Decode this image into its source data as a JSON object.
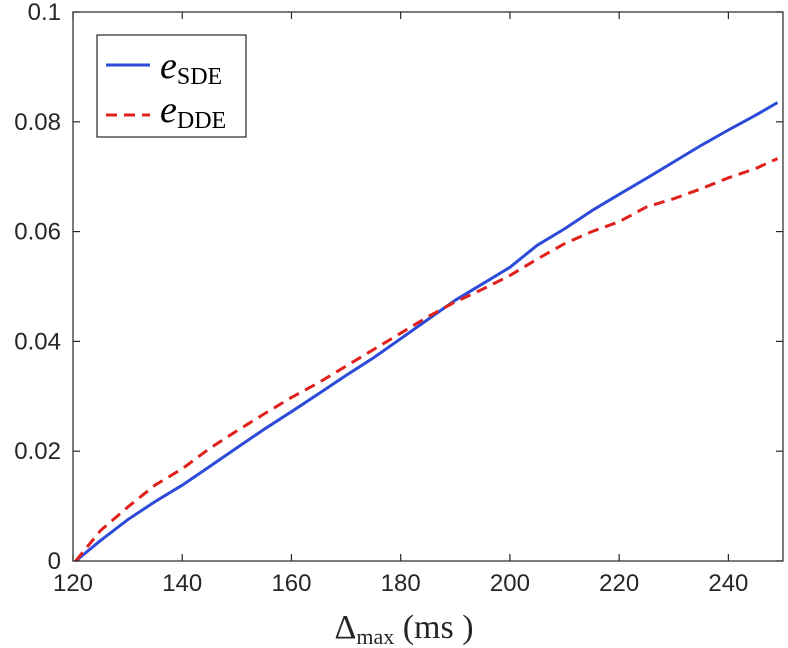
{
  "chart_data": {
    "type": "line",
    "title": "",
    "xlabel": {
      "base": "Δ",
      "sub": "max",
      "unit": " (ms )"
    },
    "ylabel": "",
    "xlim": [
      120,
      250
    ],
    "ylim": [
      0,
      0.1
    ],
    "xticks": [
      120,
      140,
      160,
      180,
      200,
      220,
      240
    ],
    "xtick_labels": [
      "120",
      "140",
      "160",
      "180",
      "200",
      "220",
      "240"
    ],
    "yticks": [
      0,
      0.02,
      0.04,
      0.06,
      0.08,
      0.1
    ],
    "ytick_labels": [
      "0",
      "0.02",
      "0.04",
      "0.06",
      "0.08",
      "0.1"
    ],
    "grid": false,
    "legend_position": "top-left",
    "series": [
      {
        "name": "e_SDE",
        "legend_base": "e",
        "legend_sub": "SDE",
        "color": "#2b4bd8",
        "style": "solid",
        "x": [
          120.5,
          125,
          130,
          135,
          140,
          145,
          150,
          155,
          160,
          165,
          170,
          175,
          180,
          185,
          190,
          195,
          200,
          205,
          210,
          215,
          220,
          225,
          230,
          235,
          240,
          245,
          249
        ],
        "y": [
          0.0,
          0.0037,
          0.0075,
          0.0108,
          0.0138,
          0.0172,
          0.0206,
          0.024,
          0.0272,
          0.0305,
          0.0338,
          0.037,
          0.0405,
          0.044,
          0.0475,
          0.0505,
          0.0535,
          0.0575,
          0.0605,
          0.0638,
          0.0668,
          0.0697,
          0.0727,
          0.0757,
          0.0785,
          0.0812,
          0.0835
        ]
      },
      {
        "name": "e_DDE",
        "legend_base": "e",
        "legend_sub": "DDE",
        "color": "#e0201b",
        "style": "dashed",
        "x": [
          120.5,
          125,
          130,
          135,
          140,
          145,
          150,
          155,
          160,
          165,
          170,
          175,
          180,
          185,
          190,
          195,
          200,
          205,
          210,
          215,
          220,
          225,
          230,
          235,
          240,
          245,
          249
        ],
        "y": [
          0.0,
          0.0055,
          0.0098,
          0.0138,
          0.0168,
          0.0205,
          0.0237,
          0.0268,
          0.0298,
          0.0325,
          0.0355,
          0.0385,
          0.0415,
          0.0445,
          0.0472,
          0.0495,
          0.052,
          0.055,
          0.0578,
          0.06,
          0.0618,
          0.0645,
          0.066,
          0.0678,
          0.0698,
          0.0715,
          0.0733
        ]
      }
    ]
  }
}
